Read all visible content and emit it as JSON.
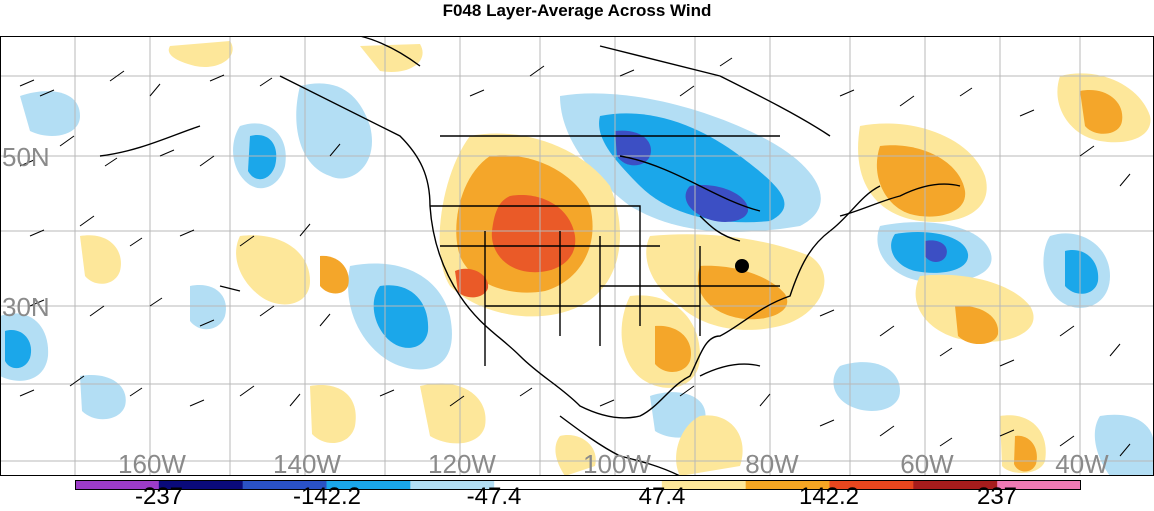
{
  "title": "F048 Layer-Average Across Wind",
  "map": {
    "lat_labels": [
      "50N",
      "30N"
    ],
    "lon_labels": [
      "160W",
      "140W",
      "120W",
      "100W",
      "80W",
      "60W",
      "40W"
    ],
    "marker": "station-dot"
  },
  "colorbar": {
    "labels": [
      "-237",
      "-142.2",
      "-47.4",
      "47.4",
      "142.2",
      "237"
    ],
    "colors": [
      "#9c3cc8",
      "#0a0a7a",
      "#2a52c6",
      "#1aa6ea",
      "#b2def4",
      "#ffffff",
      "#ffffff",
      "#fde79a",
      "#f5a623",
      "#e8461e",
      "#a61c1c",
      "#f07ab4"
    ]
  },
  "colors": {
    "light_blue": "#b3def4",
    "mid_blue": "#1ba7ea",
    "dark_blue": "#3c4fc4",
    "light_yellow": "#fde79a",
    "orange": "#f4a62a",
    "red_orange": "#ea5a28"
  }
}
